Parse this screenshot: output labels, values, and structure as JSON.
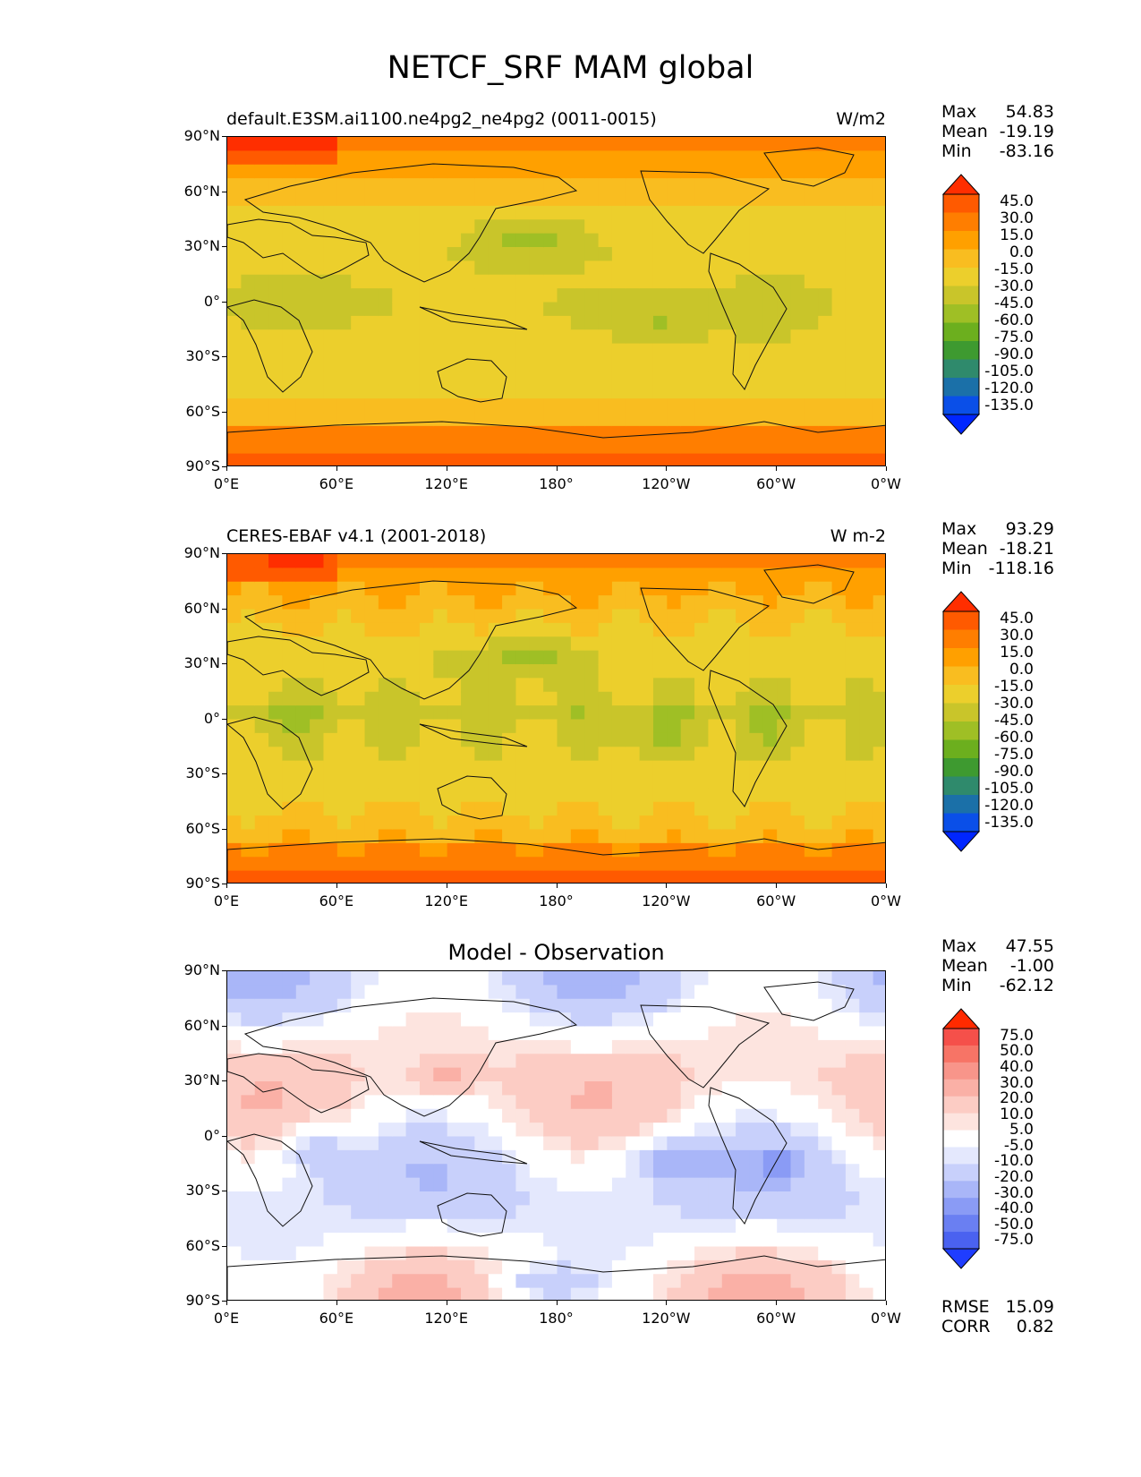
{
  "title": "NETCF_SRF MAM global",
  "panels": [
    {
      "id": "model",
      "subtitle": "default.E3SM.ai1100.ne4pg2_ne4pg2 (0011-0015)",
      "center_title": "",
      "units": "W/m2",
      "stats": {
        "max_label": "Max",
        "max": "54.83",
        "mean_label": "Mean",
        "mean": "-19.19",
        "min_label": "Min",
        "min": "-83.16"
      },
      "colorbar": {
        "levels": [
          "45.0",
          "30.0",
          "15.0",
          "0.0",
          "-15.0",
          "-30.0",
          "-45.0",
          "-60.0",
          "-75.0",
          "-90.0",
          "-105.0",
          "-120.0",
          "-135.0"
        ],
        "colors": [
          "#ff2e00",
          "#ff5a00",
          "#ff7e00",
          "#ffa000",
          "#f9bd20",
          "#eccf2c",
          "#c9c52a",
          "#9fbf25",
          "#6caf1e",
          "#3e9a30",
          "#2f8a6c",
          "#1b70a8",
          "#0a4fe8",
          "#0026ff"
        ]
      }
    },
    {
      "id": "obs",
      "subtitle": "CERES-EBAF v4.1 (2001-2018)",
      "center_title": "",
      "units": "W m-2",
      "stats": {
        "max_label": "Max",
        "max": "93.29",
        "mean_label": "Mean",
        "mean": "-18.21",
        "min_label": "Min",
        "min": "-118.16"
      },
      "colorbar": {
        "levels": [
          "45.0",
          "30.0",
          "15.0",
          "0.0",
          "-15.0",
          "-30.0",
          "-45.0",
          "-60.0",
          "-75.0",
          "-90.0",
          "-105.0",
          "-120.0",
          "-135.0"
        ],
        "colors": [
          "#ff2e00",
          "#ff5a00",
          "#ff7e00",
          "#ffa000",
          "#f9bd20",
          "#eccf2c",
          "#c9c52a",
          "#9fbf25",
          "#6caf1e",
          "#3e9a30",
          "#2f8a6c",
          "#1b70a8",
          "#0a4fe8",
          "#0026ff"
        ]
      }
    },
    {
      "id": "diff",
      "subtitle": "",
      "center_title": "Model - Observation",
      "units": "",
      "stats": {
        "max_label": "Max",
        "max": "47.55",
        "mean_label": "Mean",
        "mean": "-1.00",
        "min_label": "Min",
        "min": "-62.12"
      },
      "colorbar": {
        "levels": [
          "75.0",
          "50.0",
          "40.0",
          "30.0",
          "20.0",
          "10.0",
          "5.0",
          "-5.0",
          "-10.0",
          "-20.0",
          "-30.0",
          "-40.0",
          "-50.0",
          "-75.0"
        ],
        "colors": [
          "#ff2a00",
          "#f5504a",
          "#f77466",
          "#f8958a",
          "#fab0a6",
          "#fcccc4",
          "#fde4df",
          "#ffffff",
          "#e4e8fd",
          "#c8d0fb",
          "#a9b6f8",
          "#8a9bf5",
          "#6a7ff2",
          "#4a62f0",
          "#1f3dff"
        ]
      },
      "extra": {
        "rmse_label": "RMSE",
        "rmse": "15.09",
        "corr_label": "CORR",
        "corr": "0.82"
      }
    }
  ],
  "axes": {
    "lat_ticks": [
      "90°N",
      "60°N",
      "30°N",
      "0°",
      "30°S",
      "60°S",
      "90°S"
    ],
    "lon_ticks": [
      "0°E",
      "60°E",
      "120°E",
      "180°",
      "120°W",
      "60°W",
      "0°W"
    ]
  }
}
